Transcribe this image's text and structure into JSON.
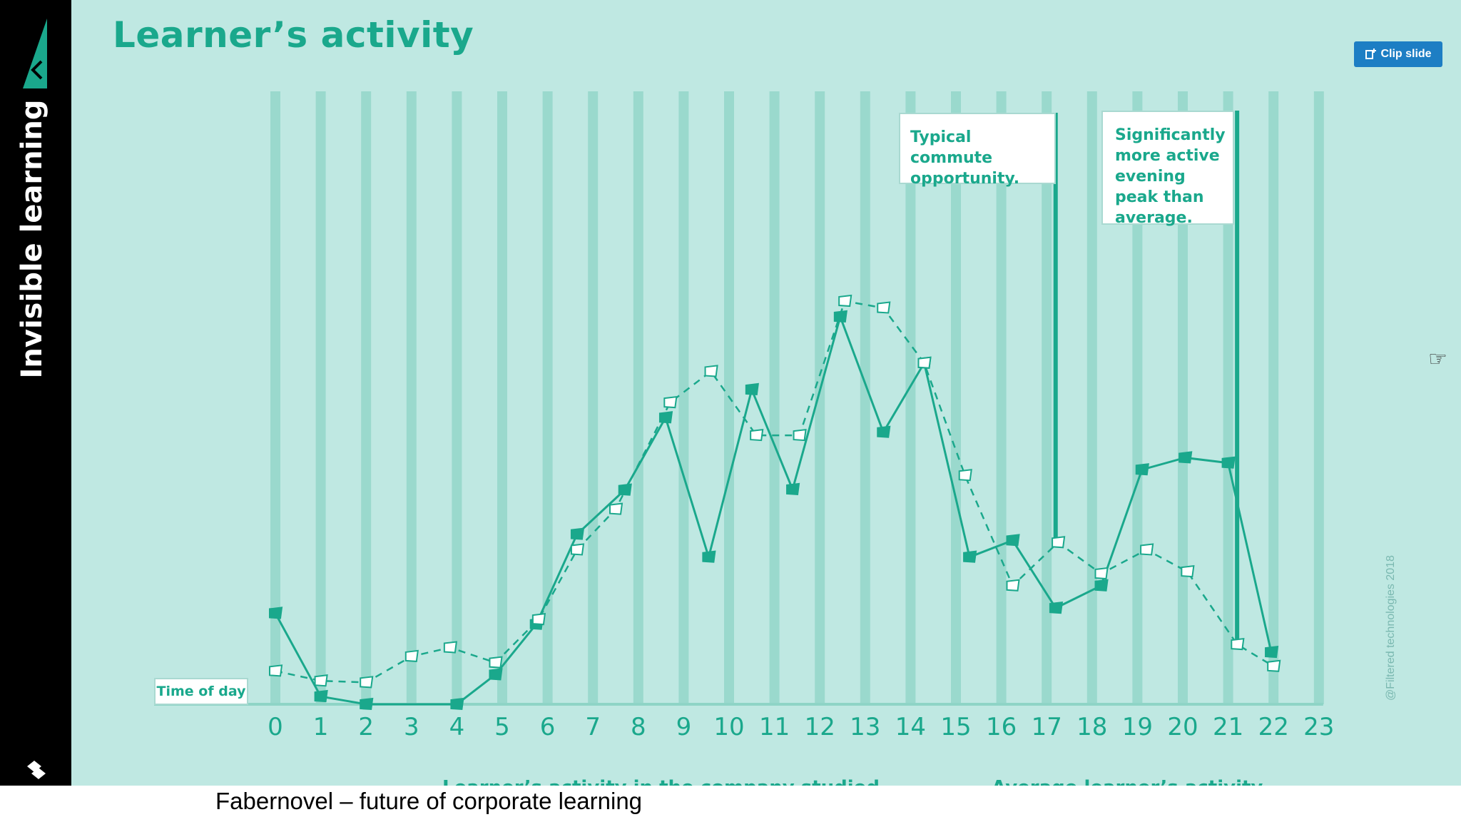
{
  "sidebar": {
    "title": "Invisible learning"
  },
  "slide": {
    "title": "Learner’s activity",
    "clip_button_label": "Clip slide",
    "copyright": "@Filtered technologies 2018",
    "callouts": {
      "commute": "Typical commute opportunity.",
      "evening": "Significantly more active evening peak than average."
    },
    "axis_tag": "Time of day",
    "legend": [
      "Learner’s activity in the company studied",
      "Average learner’s activity"
    ]
  },
  "caption": "Fabernovel – future of corporate learning",
  "colors": {
    "background": "#bfe8e2",
    "accent": "#1aa88c",
    "column": "#8ed4c6",
    "sidebar": "#000000",
    "button": "#1d7ec4"
  },
  "icons": {
    "clip": "clip-icon",
    "cursor": "pointing-hand-cursor-icon",
    "logo": "triangle-logo-icon"
  },
  "chart_data": {
    "type": "line",
    "x": [
      "0",
      "1",
      "2",
      "3",
      "4",
      "5",
      "6",
      "7",
      "8",
      "9",
      "10",
      "11",
      "12",
      "13",
      "14",
      "15",
      "16",
      "17",
      "18",
      "19",
      "20",
      "21",
      "22",
      "23"
    ],
    "series": [
      {
        "name": "Learner’s activity in the company studied",
        "style": "solid",
        "points": [
          [
            0,
            17.5
          ],
          [
            1,
            1.5
          ],
          [
            2,
            0
          ],
          [
            4,
            0
          ],
          [
            4.85,
            5.7
          ],
          [
            5.75,
            15.4
          ],
          [
            6.65,
            32.7
          ],
          [
            7.7,
            41.2
          ],
          [
            8.6,
            55.1
          ],
          [
            9.55,
            28.3
          ],
          [
            10.5,
            60.5
          ],
          [
            11.4,
            41.3
          ],
          [
            12.45,
            74.5
          ],
          [
            13.4,
            52.3
          ],
          [
            14.3,
            65.6
          ],
          [
            15.3,
            28.3
          ],
          [
            16.25,
            31.5
          ],
          [
            17.2,
            18.5
          ],
          [
            18.2,
            22.8
          ],
          [
            19.1,
            45.1
          ],
          [
            20.05,
            47.4
          ],
          [
            21.0,
            46.4
          ],
          [
            21.95,
            10.0
          ]
        ]
      },
      {
        "name": "Average learner’s activity",
        "style": "dashed",
        "points": [
          [
            0,
            6.4
          ],
          [
            1,
            4.5
          ],
          [
            2,
            4.2
          ],
          [
            3,
            9.2
          ],
          [
            3.85,
            10.9
          ],
          [
            4.85,
            8.0
          ],
          [
            5.8,
            16.3
          ],
          [
            6.65,
            29.7
          ],
          [
            7.5,
            37.5
          ],
          [
            8.7,
            58.0
          ],
          [
            9.6,
            64.0
          ],
          [
            10.6,
            51.7
          ],
          [
            11.55,
            51.7
          ],
          [
            12.55,
            77.5
          ],
          [
            13.4,
            76.2
          ],
          [
            14.3,
            65.6
          ],
          [
            15.2,
            44.0
          ],
          [
            16.25,
            22.8
          ],
          [
            17.25,
            31.1
          ],
          [
            18.2,
            25.1
          ],
          [
            19.2,
            29.7
          ],
          [
            20.1,
            25.5
          ],
          [
            21.2,
            11.5
          ],
          [
            22.0,
            7.3
          ]
        ]
      }
    ],
    "xlabel": "Time of day",
    "ylabel": "",
    "ylim": [
      0,
      100
    ],
    "grid": "vertical columns per hour",
    "annotations": [
      {
        "x": 17.2,
        "text": "Typical commute opportunity."
      },
      {
        "x": 21.2,
        "text": "Significantly more active evening peak than average."
      }
    ]
  }
}
